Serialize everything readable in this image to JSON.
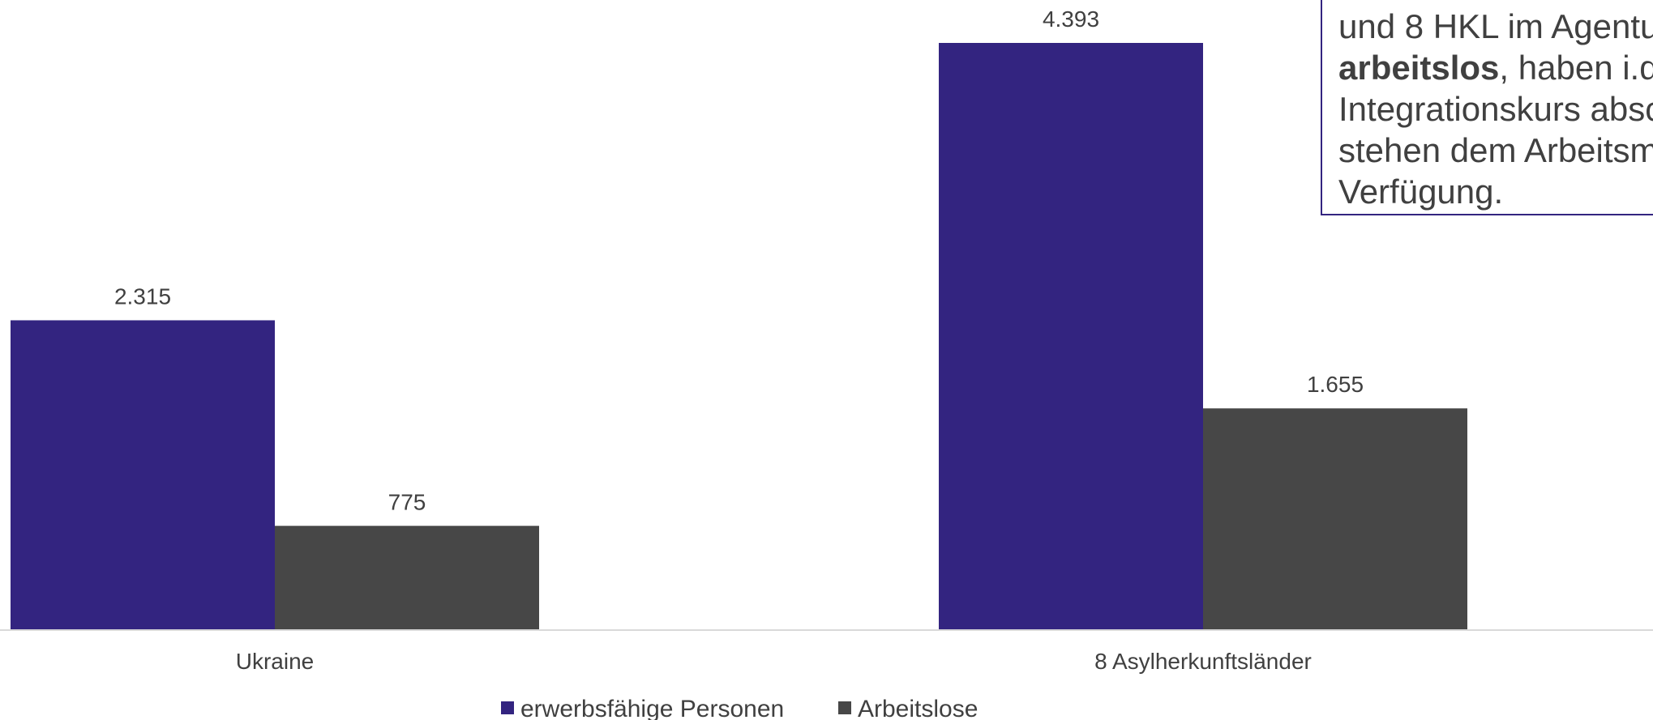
{
  "chart_data": {
    "type": "bar",
    "categories": [
      "Ukraine",
      "8 Asylherkunftsländer"
    ],
    "series": [
      {
        "name": "erwerbsfähige Personen",
        "values": [
          2315,
          4393
        ],
        "labels": [
          "2.315",
          "4.393"
        ],
        "color": "#332480"
      },
      {
        "name": "Arbeitslose",
        "values": [
          775,
          1655
        ],
        "labels": [
          "775",
          "1.655"
        ],
        "color": "#474747"
      }
    ],
    "ylim": [
      0,
      4700
    ],
    "grid": false,
    "legend": "bottom"
  },
  "callout": {
    "line1": "und 8 HKL im Agentu",
    "line2_bold": "arbeitslos",
    "line2_rest": ", haben i.d",
    "line3": "Integrationskurs absc",
    "line4": "stehen dem Arbeitsm",
    "line5": "Verfügung."
  }
}
